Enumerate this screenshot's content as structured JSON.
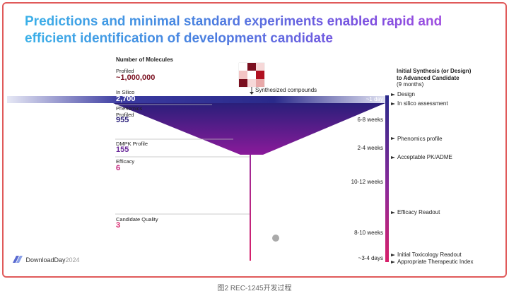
{
  "title": "Predictions and minimal standard experiments enabled rapid and efficient identification of development candidate",
  "left_header": "Number of Molecules",
  "stages": [
    {
      "label": "Profiled",
      "value": "~1,000,000"
    },
    {
      "label": "In Silico",
      "value": "2,700"
    },
    {
      "label": "Phenomics\nProfiled",
      "value": "955"
    },
    {
      "label": "DMPK Profile",
      "value": "155"
    },
    {
      "label": "Efficacy",
      "value": "6"
    },
    {
      "label": "Candidate Quality",
      "value": "3"
    }
  ],
  "synth_label": "Synthesized compounds",
  "right_header": "Initial Synthesis (or Design)\nto Advanced Candidate",
  "right_subheader": "(9 months)",
  "durations": [
    "~1 day",
    "6-8 weeks",
    "2-4 weeks",
    "10-12 weeks",
    "8-10 weeks",
    "~3-4 days"
  ],
  "milestones": [
    "Design",
    "In silico assessment",
    "Phenomics profile",
    "Acceptable PK/ADME",
    "Efficacy Readout",
    "Initial Toxicology Readout",
    "Appropriate Therapeutic Index"
  ],
  "logo_main": "DownloadDay",
  "logo_year": "2024",
  "caption": "图2 REC-1245开发过程",
  "colors": {
    "funnel_top": "#2a1f7a",
    "funnel_bottom": "#8a1a9a",
    "timeline_top": "#2a2a8a",
    "timeline_bottom": "#d8206a",
    "magenta": "#c2207a",
    "dark_red": "#7a0f1f"
  }
}
